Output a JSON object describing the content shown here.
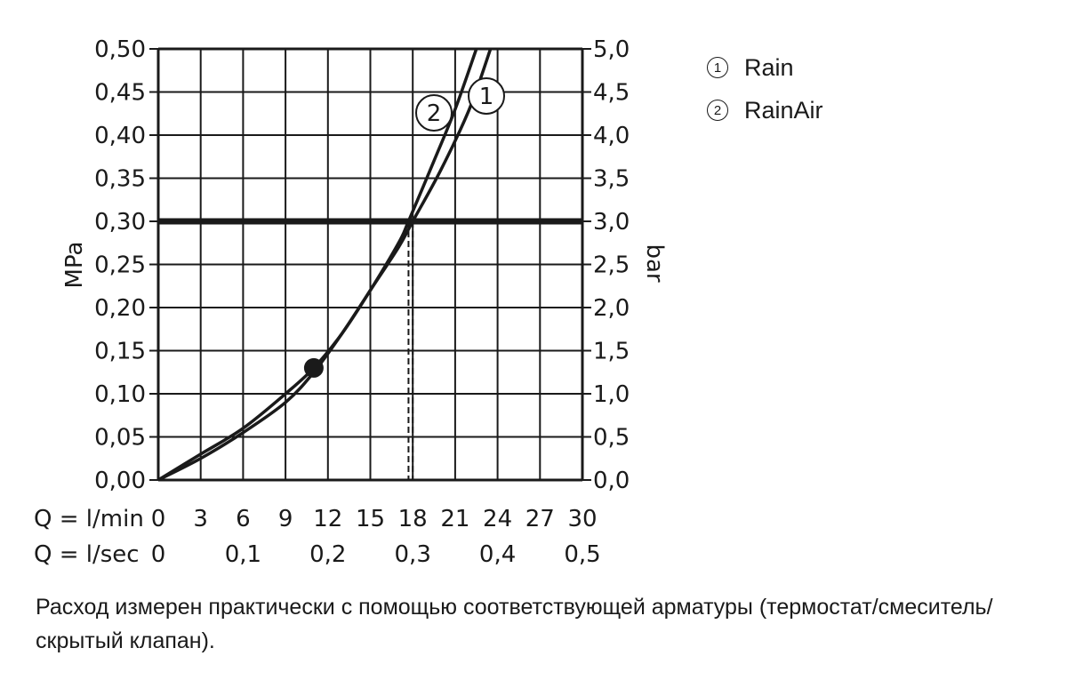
{
  "chart_data": {
    "type": "line",
    "left_axis": {
      "label": "MPa",
      "ylim": [
        0,
        0.5
      ],
      "ticks": [
        "0,00",
        "0,05",
        "0,10",
        "0,15",
        "0,20",
        "0,25",
        "0,30",
        "0,35",
        "0,40",
        "0,45",
        "0,50"
      ]
    },
    "right_axis": {
      "label": "bar",
      "ylim": [
        0,
        5
      ],
      "ticks": [
        "0,0",
        "0,5",
        "1,0",
        "1,5",
        "2,0",
        "2,5",
        "3,0",
        "3,5",
        "4,0",
        "4,5",
        "5,0"
      ]
    },
    "x_axis_lmin": {
      "label": "Q = l/min",
      "xlim": [
        0,
        30
      ],
      "ticks": [
        "0",
        "3",
        "6",
        "9",
        "12",
        "15",
        "18",
        "21",
        "24",
        "27",
        "30"
      ]
    },
    "x_axis_lsec": {
      "label": "Q = l/sec",
      "ticks": [
        "0",
        "0,1",
        "0,2",
        "0,3",
        "0,4",
        "0,5"
      ]
    },
    "grid": true,
    "reference_line": {
      "y": 0.3,
      "label": ""
    },
    "marker_point": {
      "x": 11,
      "y": 0.13
    },
    "series": [
      {
        "name": "Rain",
        "number": "1",
        "x": [
          0,
          3,
          6,
          9,
          11,
          13,
          15,
          17,
          18,
          20,
          22,
          23.5
        ],
        "y": [
          0,
          0.025,
          0.055,
          0.09,
          0.125,
          0.17,
          0.22,
          0.27,
          0.3,
          0.36,
          0.43,
          0.5
        ],
        "flow_at_0_3": 18
      },
      {
        "name": "RainAir",
        "number": "2",
        "x": [
          0,
          3,
          6,
          9,
          11,
          13,
          15,
          17,
          17.7,
          19.5,
          21,
          22.5
        ],
        "y": [
          0,
          0.03,
          0.06,
          0.1,
          0.13,
          0.17,
          0.22,
          0.275,
          0.3,
          0.37,
          0.43,
          0.5
        ],
        "flow_at_0_3": 17.7
      }
    ]
  },
  "legend": [
    {
      "number": "①",
      "name": "Rain"
    },
    {
      "number": "②",
      "name": "RainAir"
    }
  ],
  "caption": "Расход измерен практически с помощью соответствующей арматуры (термостат/смеситель/скрытый клапан)."
}
